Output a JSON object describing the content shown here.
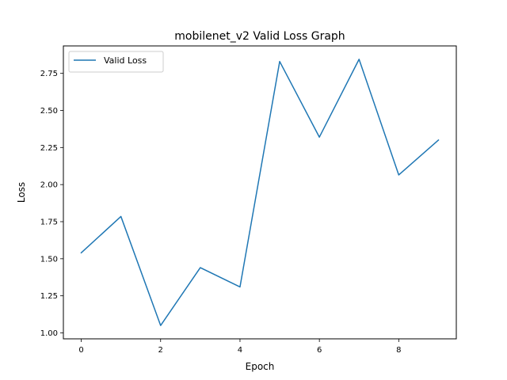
{
  "chart_data": {
    "type": "line",
    "title": "mobilenet_v2 Valid Loss Graph",
    "xlabel": "Epoch",
    "ylabel": "Loss",
    "x": [
      0,
      1,
      2,
      3,
      4,
      5,
      6,
      7,
      8,
      9
    ],
    "series": [
      {
        "name": "Valid Loss",
        "color": "#1f77b4",
        "values": [
          1.54,
          1.785,
          1.05,
          1.44,
          1.31,
          2.83,
          2.32,
          2.845,
          2.065,
          2.3
        ]
      }
    ],
    "xlim": [
      -0.45,
      9.45
    ],
    "ylim": [
      0.96,
      2.935
    ],
    "xticks": [
      0,
      2,
      4,
      6,
      8
    ],
    "yticks": [
      1.0,
      1.25,
      1.5,
      1.75,
      2.0,
      2.25,
      2.5,
      2.75
    ],
    "ytick_labels": [
      "1.00",
      "1.25",
      "1.50",
      "1.75",
      "2.00",
      "2.25",
      "2.50",
      "2.75"
    ],
    "xtick_labels": [
      "0",
      "2",
      "4",
      "6",
      "8"
    ],
    "grid": false,
    "legend_position": "top-left"
  }
}
